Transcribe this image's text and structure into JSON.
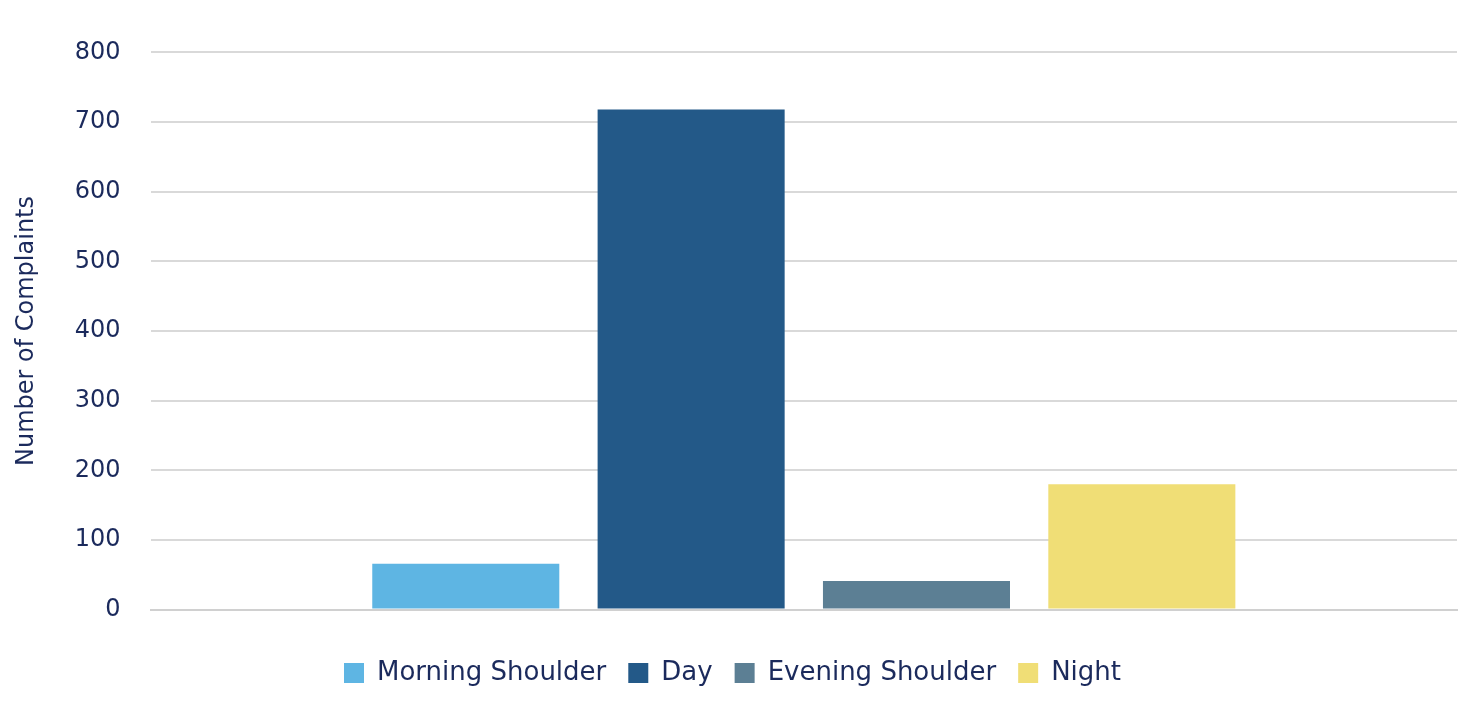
{
  "chart_data": {
    "type": "bar",
    "ylabel": "Number of Complaints",
    "categories": [
      null
    ],
    "series": [
      {
        "name": "Morning Shoulder",
        "color": "#5eb5e3",
        "values": [
          66
        ]
      },
      {
        "name": "Day",
        "color": "#235988",
        "values": [
          718
        ]
      },
      {
        "name": "Evening Shoulder",
        "color": "#5c7f94",
        "values": [
          41
        ]
      },
      {
        "name": "Night",
        "color": "#f0de76",
        "values": [
          180
        ]
      }
    ],
    "ylim": [
      0,
      800
    ],
    "yticks": [
      0,
      100,
      200,
      300,
      400,
      500,
      600,
      700,
      800
    ],
    "grid": "y",
    "legend": "bottom"
  }
}
